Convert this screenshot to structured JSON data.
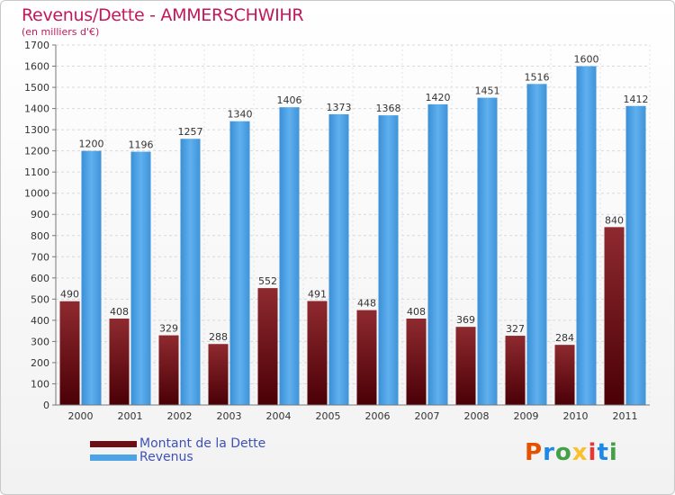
{
  "header": {
    "title": "Revenus/Dette - AMMERSCHWIHR",
    "subtitle": "(en milliers d'€)"
  },
  "legend": {
    "debt_label": "Montant de la Dette",
    "revenue_label": "Revenus"
  },
  "logo": {
    "letters": [
      "P",
      "r",
      "o",
      "x",
      "i",
      "t",
      "i"
    ],
    "colors": [
      "#e65100",
      "#1e88e5",
      "#43a047",
      "#fbc02d",
      "#e53935",
      "#1e88e5",
      "#43a047"
    ]
  },
  "colors": {
    "debt": "#7b1a1f",
    "revenue": "#4ea3e6",
    "title": "#c2185b",
    "legend_text": "#3f51b5"
  },
  "chart_data": {
    "type": "bar",
    "title": "Revenus/Dette - AMMERSCHWIHR",
    "subtitle": "(en milliers d'€)",
    "xlabel": "",
    "ylabel": "",
    "ylim": [
      0,
      1700
    ],
    "yticks": [
      0,
      100,
      200,
      300,
      400,
      500,
      600,
      700,
      800,
      900,
      1000,
      1100,
      1200,
      1300,
      1400,
      1500,
      1600,
      1700
    ],
    "grid": true,
    "legend_position": "bottom-left",
    "categories": [
      "2000",
      "2001",
      "2002",
      "2003",
      "2004",
      "2005",
      "2006",
      "2007",
      "2008",
      "2009",
      "2010",
      "2011"
    ],
    "series": [
      {
        "name": "Montant de la Dette",
        "values": [
          490,
          408,
          329,
          288,
          552,
          491,
          448,
          408,
          369,
          327,
          284,
          840
        ]
      },
      {
        "name": "Revenus",
        "values": [
          1200,
          1196,
          1257,
          1340,
          1406,
          1373,
          1368,
          1420,
          1451,
          1516,
          1600,
          1412
        ]
      }
    ]
  }
}
